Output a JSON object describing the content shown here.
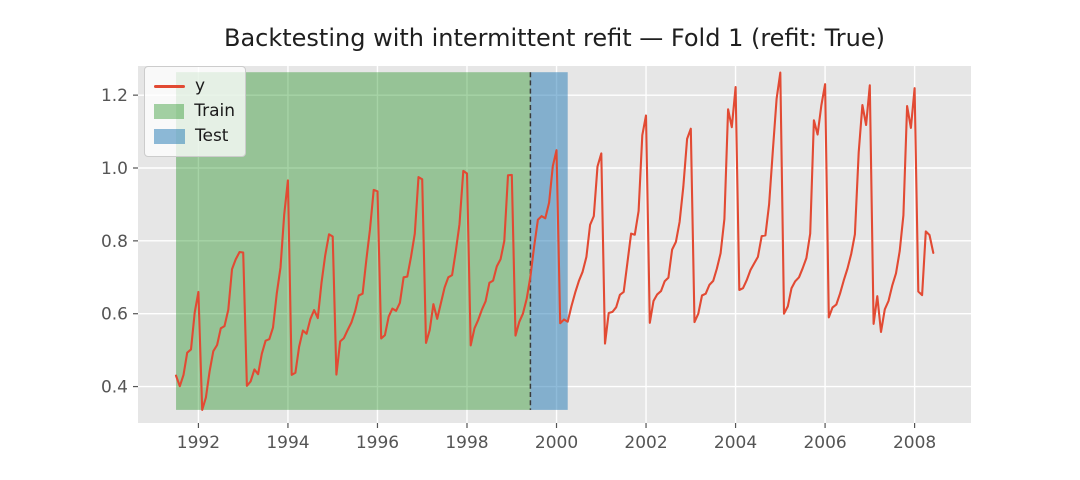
{
  "colors": {
    "series": "#E24A33",
    "train_fill": "rgba(0,128,0,0.35)",
    "test_fill": "rgba(31,119,180,0.5)",
    "axes_background": "#E6E6E6",
    "gridline": "#FFFFFF",
    "tick_label": "#555555",
    "split_line": "#3a3a3a"
  },
  "chart_data": {
    "type": "line",
    "title": "Backtesting with intermittent refit — Fold 1 (refit: True)",
    "xlabel": "",
    "ylabel": "",
    "grid": true,
    "legend_position": "upper left",
    "legend": [
      "y",
      "Train",
      "Test"
    ],
    "x_ticks": [
      1992,
      1994,
      1996,
      1998,
      2000,
      2002,
      2004,
      2006,
      2008
    ],
    "y_ticks": [
      "0.4",
      "0.6",
      "0.8",
      "1.0",
      "1.2"
    ],
    "xlim": [
      1990.65,
      2009.26
    ],
    "ylim": [
      0.3,
      1.28
    ],
    "train_span": {
      "label": "Train",
      "from": "1991-07",
      "to": "1999-06"
    },
    "test_span": {
      "label": "Test",
      "from": "1999-06",
      "to": "2000-04"
    },
    "refit_split": {
      "x": "1999-06",
      "style": "dashed"
    },
    "span_value_range": [
      0.336,
      1.263
    ],
    "x": [
      "1991-07",
      "1991-08",
      "1991-09",
      "1991-10",
      "1991-11",
      "1991-12",
      "1992-01",
      "1992-02",
      "1992-03",
      "1992-04",
      "1992-05",
      "1992-06",
      "1992-07",
      "1992-08",
      "1992-09",
      "1992-10",
      "1992-11",
      "1992-12",
      "1993-01",
      "1993-02",
      "1993-03",
      "1993-04",
      "1993-05",
      "1993-06",
      "1993-07",
      "1993-08",
      "1993-09",
      "1993-10",
      "1993-11",
      "1993-12",
      "1994-01",
      "1994-02",
      "1994-03",
      "1994-04",
      "1994-05",
      "1994-06",
      "1994-07",
      "1994-08",
      "1994-09",
      "1994-10",
      "1994-11",
      "1994-12",
      "1995-01",
      "1995-02",
      "1995-03",
      "1995-04",
      "1995-05",
      "1995-06",
      "1995-07",
      "1995-08",
      "1995-09",
      "1995-10",
      "1995-11",
      "1995-12",
      "1996-01",
      "1996-02",
      "1996-03",
      "1996-04",
      "1996-05",
      "1996-06",
      "1996-07",
      "1996-08",
      "1996-09",
      "1996-10",
      "1996-11",
      "1996-12",
      "1997-01",
      "1997-02",
      "1997-03",
      "1997-04",
      "1997-05",
      "1997-06",
      "1997-07",
      "1997-08",
      "1997-09",
      "1997-10",
      "1997-11",
      "1997-12",
      "1998-01",
      "1998-02",
      "1998-03",
      "1998-04",
      "1998-05",
      "1998-06",
      "1998-07",
      "1998-08",
      "1998-09",
      "1998-10",
      "1998-11",
      "1998-12",
      "1999-01",
      "1999-02",
      "1999-03",
      "1999-04",
      "1999-05",
      "1999-06",
      "1999-07",
      "1999-08",
      "1999-09",
      "1999-10",
      "1999-11",
      "1999-12",
      "2000-01",
      "2000-02",
      "2000-03",
      "2000-04",
      "2000-05",
      "2000-06",
      "2000-07",
      "2000-08",
      "2000-09",
      "2000-10",
      "2000-11",
      "2000-12",
      "2001-01",
      "2001-02",
      "2001-03",
      "2001-04",
      "2001-05",
      "2001-06",
      "2001-07",
      "2001-08",
      "2001-09",
      "2001-10",
      "2001-11",
      "2001-12",
      "2002-01",
      "2002-02",
      "2002-03",
      "2002-04",
      "2002-05",
      "2002-06",
      "2002-07",
      "2002-08",
      "2002-09",
      "2002-10",
      "2002-11",
      "2002-12",
      "2003-01",
      "2003-02",
      "2003-03",
      "2003-04",
      "2003-05",
      "2003-06",
      "2003-07",
      "2003-08",
      "2003-09",
      "2003-10",
      "2003-11",
      "2003-12",
      "2004-01",
      "2004-02",
      "2004-03",
      "2004-04",
      "2004-05",
      "2004-06",
      "2004-07",
      "2004-08",
      "2004-09",
      "2004-10",
      "2004-11",
      "2004-12",
      "2005-01",
      "2005-02",
      "2005-03",
      "2005-04",
      "2005-05",
      "2005-06",
      "2005-07",
      "2005-08",
      "2005-09",
      "2005-10",
      "2005-11",
      "2005-12",
      "2006-01",
      "2006-02",
      "2006-03",
      "2006-04",
      "2006-05",
      "2006-06",
      "2006-07",
      "2006-08",
      "2006-09",
      "2006-10",
      "2006-11",
      "2006-12",
      "2007-01",
      "2007-02",
      "2007-03",
      "2007-04",
      "2007-05",
      "2007-06",
      "2007-07",
      "2007-08",
      "2007-09",
      "2007-10",
      "2007-11",
      "2007-12",
      "2008-01",
      "2008-02",
      "2008-03",
      "2008-04",
      "2008-05",
      "2008-06"
    ],
    "series": [
      {
        "name": "y",
        "color": "#E24A33",
        "values": [
          0.43,
          0.401,
          0.432,
          0.493,
          0.502,
          0.603,
          0.66,
          0.336,
          0.37,
          0.442,
          0.497,
          0.514,
          0.56,
          0.566,
          0.611,
          0.722,
          0.749,
          0.769,
          0.768,
          0.402,
          0.414,
          0.447,
          0.434,
          0.49,
          0.526,
          0.53,
          0.562,
          0.656,
          0.727,
          0.872,
          0.966,
          0.432,
          0.438,
          0.509,
          0.554,
          0.545,
          0.585,
          0.61,
          0.588,
          0.685,
          0.76,
          0.818,
          0.812,
          0.433,
          0.524,
          0.533,
          0.555,
          0.576,
          0.607,
          0.65,
          0.655,
          0.747,
          0.832,
          0.94,
          0.936,
          0.532,
          0.541,
          0.592,
          0.614,
          0.608,
          0.63,
          0.7,
          0.702,
          0.756,
          0.82,
          0.975,
          0.969,
          0.52,
          0.555,
          0.626,
          0.586,
          0.629,
          0.672,
          0.7,
          0.706,
          0.772,
          0.846,
          0.992,
          0.985,
          0.513,
          0.56,
          0.583,
          0.611,
          0.634,
          0.685,
          0.691,
          0.73,
          0.75,
          0.8,
          0.98,
          0.981,
          0.54,
          0.577,
          0.6,
          0.641,
          0.702,
          0.784,
          0.858,
          0.868,
          0.862,
          0.905,
          1.005,
          1.049,
          0.574,
          0.584,
          0.578,
          0.62,
          0.658,
          0.69,
          0.715,
          0.756,
          0.844,
          0.868,
          1.004,
          1.04,
          0.518,
          0.602,
          0.605,
          0.618,
          0.652,
          0.66,
          0.74,
          0.82,
          0.817,
          0.882,
          1.09,
          1.144,
          0.575,
          0.635,
          0.653,
          0.662,
          0.689,
          0.699,
          0.776,
          0.797,
          0.852,
          0.948,
          1.08,
          1.108,
          0.577,
          0.6,
          0.65,
          0.655,
          0.679,
          0.69,
          0.724,
          0.766,
          0.86,
          1.161,
          1.112,
          1.222,
          0.665,
          0.67,
          0.692,
          0.72,
          0.738,
          0.756,
          0.813,
          0.815,
          0.9,
          1.05,
          1.19,
          1.262,
          0.6,
          0.62,
          0.67,
          0.689,
          0.7,
          0.725,
          0.753,
          0.82,
          1.131,
          1.092,
          1.171,
          1.23,
          0.59,
          0.617,
          0.625,
          0.655,
          0.691,
          0.724,
          0.764,
          0.818,
          1.043,
          1.173,
          1.118,
          1.227,
          0.572,
          0.648,
          0.55,
          0.612,
          0.635,
          0.677,
          0.711,
          0.772,
          0.87,
          1.17,
          1.11,
          1.219,
          0.661,
          0.651,
          0.826,
          0.816,
          0.767
        ]
      }
    ]
  }
}
